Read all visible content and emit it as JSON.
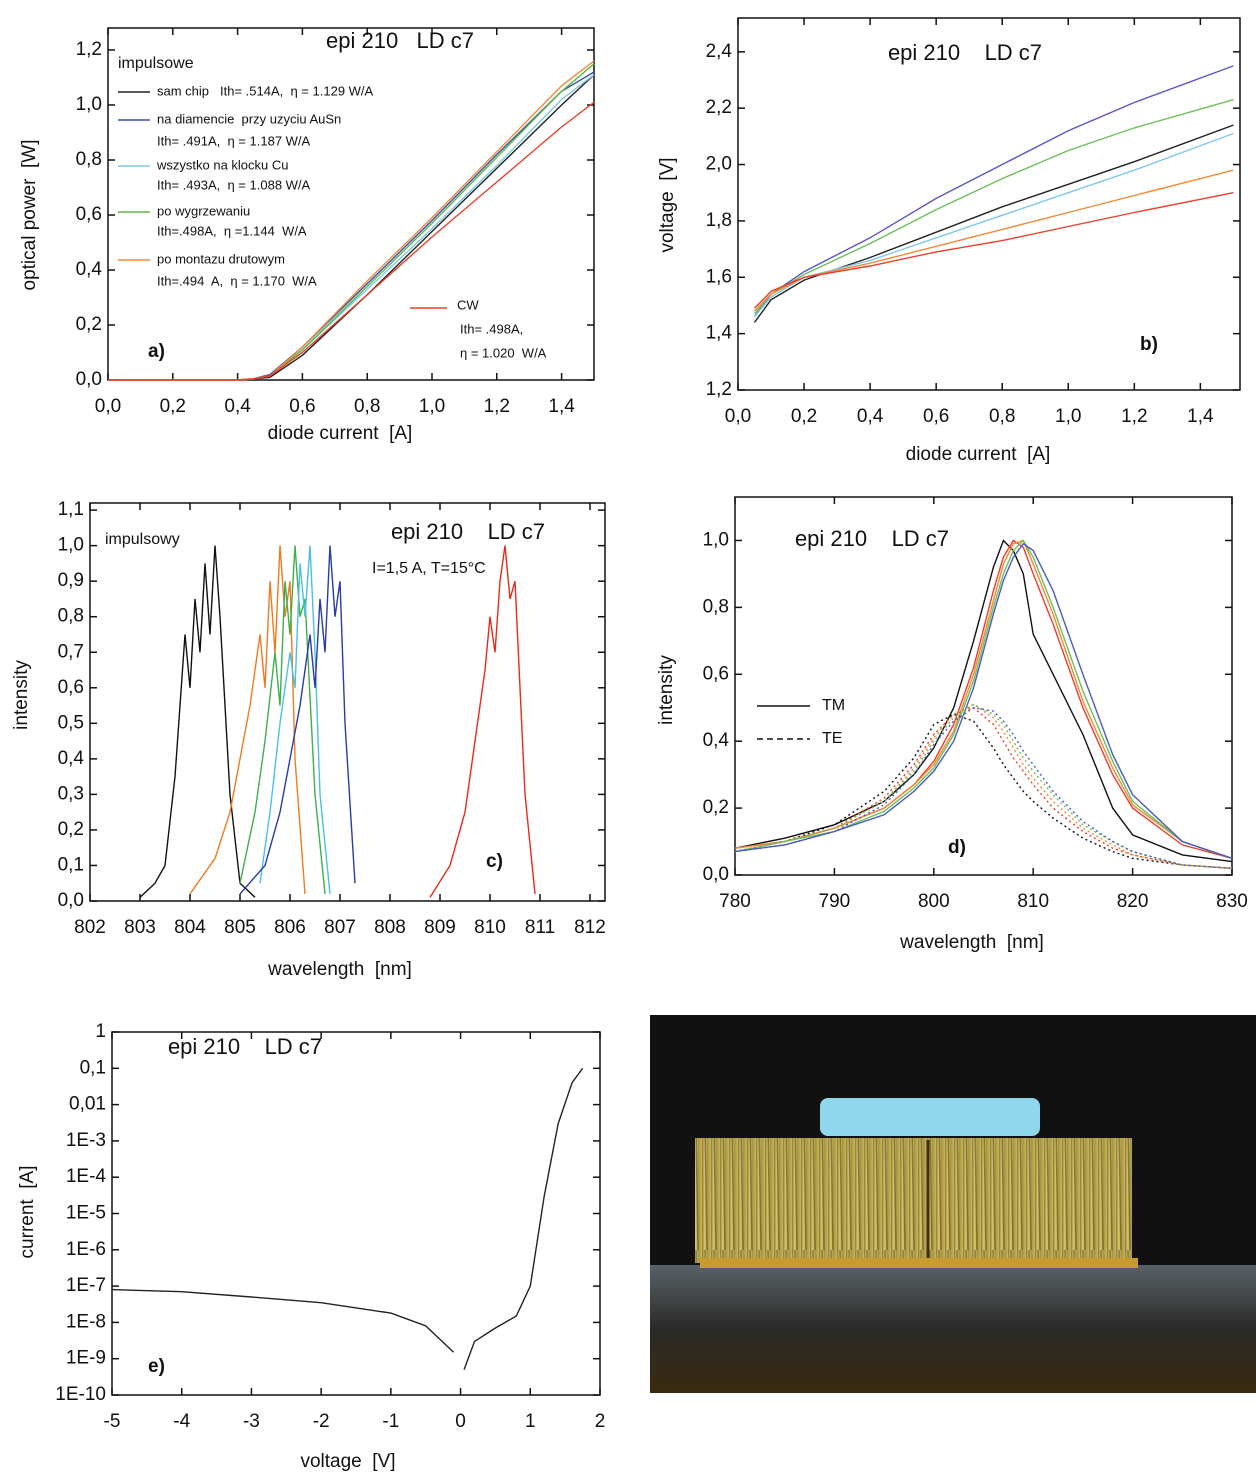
{
  "chart_data": [
    {
      "type": "line",
      "title": "epi 210   LD c7",
      "x_label": "diode current  [A]",
      "y_label": "optical power  [W]",
      "annotations": [
        "impulsowe",
        "a)"
      ],
      "xlim": [
        0,
        1.5
      ],
      "ylim": [
        0,
        1.28
      ],
      "xticks": [
        {
          "value": 0,
          "label": "0,0"
        },
        {
          "value": 0.2,
          "label": "0,2"
        },
        {
          "value": 0.4,
          "label": "0,4"
        },
        {
          "value": 0.6,
          "label": "0,6"
        },
        {
          "value": 0.8,
          "label": "0,8"
        },
        {
          "value": 1.0,
          "label": "1,0"
        },
        {
          "value": 1.2,
          "label": "1,2"
        },
        {
          "value": 1.4,
          "label": "1,4"
        }
      ],
      "yticks": [
        {
          "value": 0,
          "label": "0,0"
        },
        {
          "value": 0.2,
          "label": "0,2"
        },
        {
          "value": 0.4,
          "label": "0,4"
        },
        {
          "value": 0.6,
          "label": "0,6"
        },
        {
          "value": 0.8,
          "label": "0,8"
        },
        {
          "value": 1.0,
          "label": "1,0"
        },
        {
          "value": 1.2,
          "label": "1,2"
        }
      ],
      "x": [
        0,
        0.2,
        0.4,
        0.45,
        0.5,
        0.6,
        0.8,
        1.0,
        1.2,
        1.4,
        1.5
      ],
      "series": [
        {
          "name": "sam chip",
          "detail": [
            "Ith= .514A,  η = 1.129 W/A"
          ],
          "color": "#222222",
          "values": [
            0,
            0,
            0,
            0.004,
            0.01,
            0.09,
            0.31,
            0.54,
            0.77,
            1.0,
            1.11
          ]
        },
        {
          "name": "na diamencie  przy uzyciu AuSn",
          "detail": [
            "Ith= .491A,  η = 1.187 W/A"
          ],
          "color": "#3a4fb0",
          "values": [
            0,
            0,
            0,
            0.005,
            0.02,
            0.12,
            0.35,
            0.58,
            0.82,
            1.05,
            1.12
          ]
        },
        {
          "name": "wszystko na klocku Cu",
          "detail": [
            "Ith= .493A,  η = 1.088 W/A"
          ],
          "color": "#7fc8e8",
          "values": [
            0,
            0,
            0,
            0.004,
            0.015,
            0.11,
            0.33,
            0.55,
            0.78,
            1.02,
            1.11
          ]
        },
        {
          "name": "po wygrzewaniu",
          "detail": [
            "Ith=.498A,  η =1.144  W/A"
          ],
          "color": "#5cb84a",
          "values": [
            0,
            0,
            0,
            0.005,
            0.015,
            0.11,
            0.34,
            0.57,
            0.81,
            1.05,
            1.15
          ]
        },
        {
          "name": "po montazu drutowym",
          "detail": [
            "Ith=.494  A,  η = 1.170  W/A"
          ],
          "color": "#f08a3a",
          "values": [
            0,
            0,
            0,
            0.005,
            0.015,
            0.12,
            0.36,
            0.59,
            0.83,
            1.07,
            1.16
          ]
        },
        {
          "name": "CW",
          "detail": [
            "Ith= .498A,",
            "η = 1.020  W/A"
          ],
          "color": "#e8402a",
          "values": [
            0,
            0,
            0,
            0.004,
            0.015,
            0.1,
            0.31,
            0.52,
            0.72,
            0.92,
            1.01
          ]
        }
      ]
    },
    {
      "type": "line",
      "title": "epi 210    LD c7",
      "x_label": "diode current  [A]",
      "y_label": "voltage  [V]",
      "annotations": [
        "b)"
      ],
      "xlim": [
        0,
        1.52
      ],
      "ylim": [
        1.2,
        2.52
      ],
      "xticks": [
        {
          "value": 0,
          "label": "0,0"
        },
        {
          "value": 0.2,
          "label": "0,2"
        },
        {
          "value": 0.4,
          "label": "0,4"
        },
        {
          "value": 0.6,
          "label": "0,6"
        },
        {
          "value": 0.8,
          "label": "0,8"
        },
        {
          "value": 1.0,
          "label": "1,0"
        },
        {
          "value": 1.2,
          "label": "1,2"
        },
        {
          "value": 1.4,
          "label": "1,4"
        }
      ],
      "yticks": [
        {
          "value": 1.2,
          "label": "1,2"
        },
        {
          "value": 1.4,
          "label": "1,4"
        },
        {
          "value": 1.6,
          "label": "1,6"
        },
        {
          "value": 1.8,
          "label": "1,8"
        },
        {
          "value": 2.0,
          "label": "2,0"
        },
        {
          "value": 2.2,
          "label": "2,2"
        },
        {
          "value": 2.4,
          "label": "2,4"
        }
      ],
      "x": [
        0.05,
        0.1,
        0.2,
        0.4,
        0.6,
        0.8,
        1.0,
        1.2,
        1.5
      ],
      "series": [
        {
          "color": "#222222",
          "values": [
            1.44,
            1.52,
            1.59,
            1.67,
            1.76,
            1.85,
            1.93,
            2.01,
            2.14
          ]
        },
        {
          "color": "#5a55c8",
          "values": [
            1.46,
            1.54,
            1.62,
            1.74,
            1.88,
            2.0,
            2.12,
            2.22,
            2.35
          ]
        },
        {
          "color": "#6cc05a",
          "values": [
            1.47,
            1.54,
            1.61,
            1.72,
            1.84,
            1.95,
            2.05,
            2.13,
            2.23
          ]
        },
        {
          "color": "#7fc8e8",
          "values": [
            1.46,
            1.53,
            1.6,
            1.66,
            1.74,
            1.82,
            1.9,
            1.98,
            2.11
          ]
        },
        {
          "color": "#f08a3a",
          "values": [
            1.48,
            1.54,
            1.6,
            1.65,
            1.71,
            1.77,
            1.83,
            1.89,
            1.98
          ]
        },
        {
          "color": "#e8402a",
          "values": [
            1.49,
            1.55,
            1.6,
            1.64,
            1.69,
            1.73,
            1.78,
            1.83,
            1.9
          ]
        }
      ]
    },
    {
      "type": "line",
      "title": "epi 210    LD c7",
      "x_label": "wavelength  [nm]",
      "y_label": "intensity",
      "annotations": [
        "impulsowy",
        "I=1,5 A, T=15°C",
        "c)"
      ],
      "xlim": [
        802,
        812.3
      ],
      "ylim": [
        0,
        1.12
      ],
      "xticks": [
        802,
        803,
        804,
        805,
        806,
        807,
        808,
        809,
        810,
        811,
        812
      ],
      "yticks": [
        {
          "value": 0,
          "label": "0,0"
        },
        {
          "value": 0.1,
          "label": "0,1"
        },
        {
          "value": 0.2,
          "label": "0,2"
        },
        {
          "value": 0.3,
          "label": "0,3"
        },
        {
          "value": 0.4,
          "label": "0,4"
        },
        {
          "value": 0.5,
          "label": "0,5"
        },
        {
          "value": 0.6,
          "label": "0,6"
        },
        {
          "value": 0.7,
          "label": "0,7"
        },
        {
          "value": 0.8,
          "label": "0,8"
        },
        {
          "value": 0.9,
          "label": "0,9"
        },
        {
          "value": 1.0,
          "label": "1,0"
        },
        {
          "value": 1.1,
          "label": "1,1"
        }
      ],
      "series": [
        {
          "color": "#111111",
          "x": [
            803,
            803.3,
            803.5,
            803.7,
            803.8,
            803.9,
            804.0,
            804.1,
            804.2,
            804.3,
            804.4,
            804.5,
            804.6,
            804.7,
            804.8,
            805,
            805.3
          ],
          "values": [
            0.01,
            0.05,
            0.1,
            0.35,
            0.55,
            0.75,
            0.6,
            0.85,
            0.7,
            0.95,
            0.75,
            1.0,
            0.8,
            0.55,
            0.3,
            0.05,
            0.01
          ]
        },
        {
          "color": "#f07a20",
          "x": [
            804,
            804.5,
            804.8,
            805,
            805.2,
            805.4,
            805.5,
            805.6,
            805.7,
            805.8,
            805.9,
            806.0,
            806.1,
            806.3
          ],
          "values": [
            0.02,
            0.12,
            0.25,
            0.4,
            0.55,
            0.75,
            0.6,
            0.9,
            0.7,
            1.0,
            0.8,
            0.9,
            0.4,
            0.02
          ]
        },
        {
          "color": "#3cb04a",
          "x": [
            805,
            805.3,
            805.5,
            805.7,
            805.8,
            805.9,
            806.0,
            806.1,
            806.2,
            806.3,
            806.5,
            806.7
          ],
          "values": [
            0.05,
            0.25,
            0.45,
            0.7,
            0.55,
            0.9,
            0.75,
            1.0,
            0.8,
            0.85,
            0.3,
            0.02
          ]
        },
        {
          "color": "#4cc0e0",
          "x": [
            805.4,
            805.6,
            805.8,
            806.0,
            806.1,
            806.2,
            806.3,
            806.4,
            806.5,
            806.6,
            806.8
          ],
          "values": [
            0.05,
            0.25,
            0.5,
            0.7,
            0.6,
            0.95,
            0.8,
            1.0,
            0.7,
            0.3,
            0.02
          ]
        },
        {
          "color": "#2a3aa8",
          "x": [
            805,
            805.5,
            805.8,
            806.0,
            806.2,
            806.4,
            806.5,
            806.6,
            806.7,
            806.8,
            806.9,
            807.0,
            807.1,
            807.3
          ],
          "values": [
            0.02,
            0.1,
            0.25,
            0.4,
            0.55,
            0.75,
            0.6,
            0.85,
            0.7,
            1.0,
            0.8,
            0.9,
            0.5,
            0.05
          ]
        },
        {
          "color": "#e82a1a",
          "x": [
            808.8,
            809.2,
            809.5,
            809.7,
            809.9,
            810.0,
            810.1,
            810.2,
            810.3,
            810.4,
            810.5,
            810.6,
            810.7,
            810.9
          ],
          "values": [
            0.01,
            0.1,
            0.25,
            0.45,
            0.65,
            0.8,
            0.7,
            0.9,
            1.0,
            0.85,
            0.9,
            0.6,
            0.3,
            0.02
          ]
        }
      ]
    },
    {
      "type": "line",
      "title": "epi 210    LD c7",
      "x_label": "wavelength  [nm]",
      "y_label": "intensity",
      "annotations": [
        "d)"
      ],
      "xlim": [
        780,
        830
      ],
      "ylim": [
        0,
        1.13
      ],
      "xticks": [
        780,
        790,
        800,
        810,
        820,
        830
      ],
      "yticks": [
        {
          "value": 0,
          "label": "0,0"
        },
        {
          "value": 0.2,
          "label": "0,2"
        },
        {
          "value": 0.4,
          "label": "0,4"
        },
        {
          "value": 0.6,
          "label": "0,6"
        },
        {
          "value": 0.8,
          "label": "0,8"
        },
        {
          "value": 1.0,
          "label": "1,0"
        }
      ],
      "legend": [
        {
          "name": "TM",
          "dash": "solid"
        },
        {
          "name": "TE",
          "dash": "dash"
        }
      ],
      "x": [
        780,
        785,
        790,
        795,
        798,
        800,
        802,
        804,
        806,
        807,
        808,
        809,
        810,
        812,
        815,
        818,
        820,
        825,
        830
      ],
      "series": [
        {
          "color": "#111111",
          "dash": "solid",
          "values": [
            0.08,
            0.11,
            0.15,
            0.22,
            0.3,
            0.38,
            0.5,
            0.7,
            0.92,
            1.0,
            0.97,
            0.9,
            0.72,
            0.6,
            0.42,
            0.2,
            0.12,
            0.06,
            0.04
          ]
        },
        {
          "color": "#e8402a",
          "dash": "solid",
          "values": [
            0.08,
            0.1,
            0.14,
            0.2,
            0.27,
            0.34,
            0.45,
            0.62,
            0.85,
            0.95,
            1.0,
            0.98,
            0.9,
            0.75,
            0.5,
            0.3,
            0.2,
            0.09,
            0.05
          ]
        },
        {
          "color": "#f08a3a",
          "dash": "solid",
          "values": [
            0.08,
            0.1,
            0.14,
            0.2,
            0.27,
            0.33,
            0.43,
            0.6,
            0.82,
            0.93,
            0.99,
            1.0,
            0.93,
            0.78,
            0.52,
            0.32,
            0.21,
            0.1,
            0.05
          ]
        },
        {
          "color": "#6cc05a",
          "dash": "solid",
          "values": [
            0.07,
            0.1,
            0.13,
            0.19,
            0.26,
            0.32,
            0.42,
            0.58,
            0.8,
            0.9,
            0.97,
            1.0,
            0.95,
            0.8,
            0.55,
            0.34,
            0.22,
            0.1,
            0.05
          ]
        },
        {
          "color": "#4a5ac0",
          "dash": "solid",
          "values": [
            0.07,
            0.09,
            0.13,
            0.18,
            0.25,
            0.31,
            0.4,
            0.56,
            0.78,
            0.88,
            0.95,
            0.99,
            0.97,
            0.85,
            0.6,
            0.36,
            0.24,
            0.1,
            0.05
          ]
        },
        {
          "color": "#111111",
          "dash": "dot",
          "values": [
            0.07,
            0.1,
            0.15,
            0.25,
            0.35,
            0.45,
            0.48,
            0.46,
            0.38,
            0.33,
            0.29,
            0.25,
            0.22,
            0.17,
            0.11,
            0.07,
            0.05,
            0.03,
            0.02
          ]
        },
        {
          "color": "#e8402a",
          "dash": "dot",
          "values": [
            0.07,
            0.1,
            0.14,
            0.23,
            0.33,
            0.42,
            0.48,
            0.5,
            0.45,
            0.4,
            0.35,
            0.31,
            0.27,
            0.2,
            0.13,
            0.08,
            0.06,
            0.03,
            0.02
          ]
        },
        {
          "color": "#f08a3a",
          "dash": "dot",
          "values": [
            0.07,
            0.1,
            0.14,
            0.22,
            0.32,
            0.41,
            0.48,
            0.51,
            0.47,
            0.43,
            0.38,
            0.33,
            0.29,
            0.22,
            0.14,
            0.09,
            0.06,
            0.03,
            0.02
          ]
        },
        {
          "color": "#6cc05a",
          "dash": "dot",
          "values": [
            0.07,
            0.1,
            0.14,
            0.22,
            0.31,
            0.4,
            0.47,
            0.51,
            0.48,
            0.45,
            0.4,
            0.35,
            0.31,
            0.24,
            0.15,
            0.1,
            0.07,
            0.03,
            0.02
          ]
        },
        {
          "color": "#4a5ac0",
          "dash": "dot",
          "values": [
            0.07,
            0.09,
            0.13,
            0.21,
            0.3,
            0.39,
            0.46,
            0.5,
            0.49,
            0.46,
            0.42,
            0.37,
            0.33,
            0.25,
            0.16,
            0.1,
            0.07,
            0.03,
            0.02
          ]
        }
      ]
    },
    {
      "type": "line",
      "title": "epi 210    LD c7",
      "x_label": "voltage  [V]",
      "y_label": "current  [A]",
      "annotations": [
        "e)"
      ],
      "yscale": "log",
      "xlim": [
        -5,
        2
      ],
      "ylim": [
        1e-10,
        1
      ],
      "xticks": [
        -5,
        -4,
        -3,
        -2,
        -1,
        0,
        1,
        2
      ],
      "yticks": [
        1,
        {
          "value": 0.1,
          "label": "0,1"
        },
        {
          "value": 0.01,
          "label": "0,01"
        },
        {
          "value": 0.001,
          "label": "1E-3"
        },
        {
          "value": 0.0001,
          "label": "1E-4"
        },
        {
          "value": 1e-05,
          "label": "1E-5"
        },
        {
          "value": 1e-06,
          "label": "1E-6"
        },
        {
          "value": 1e-07,
          "label": "1E-7"
        },
        {
          "value": 1e-08,
          "label": "1E-8"
        },
        {
          "value": 1e-09,
          "label": "1E-9"
        },
        {
          "value": 1e-10,
          "label": "1E-10"
        }
      ],
      "x": [
        -5,
        -4,
        -3,
        -2,
        -1,
        -0.5,
        -0.1,
        0,
        0.05,
        0.2,
        0.5,
        0.8,
        1.0,
        1.2,
        1.4,
        1.6,
        1.75
      ],
      "series": [
        {
          "color": "#222222",
          "values": [
            8e-08,
            7e-08,
            5e-08,
            3.5e-08,
            1.8e-08,
            8e-09,
            1.5e-09,
            null,
            5e-10,
            3e-09,
            7e-09,
            1.5e-08,
            1e-07,
            3e-05,
            0.003,
            0.04,
            0.1
          ]
        }
      ]
    }
  ]
}
